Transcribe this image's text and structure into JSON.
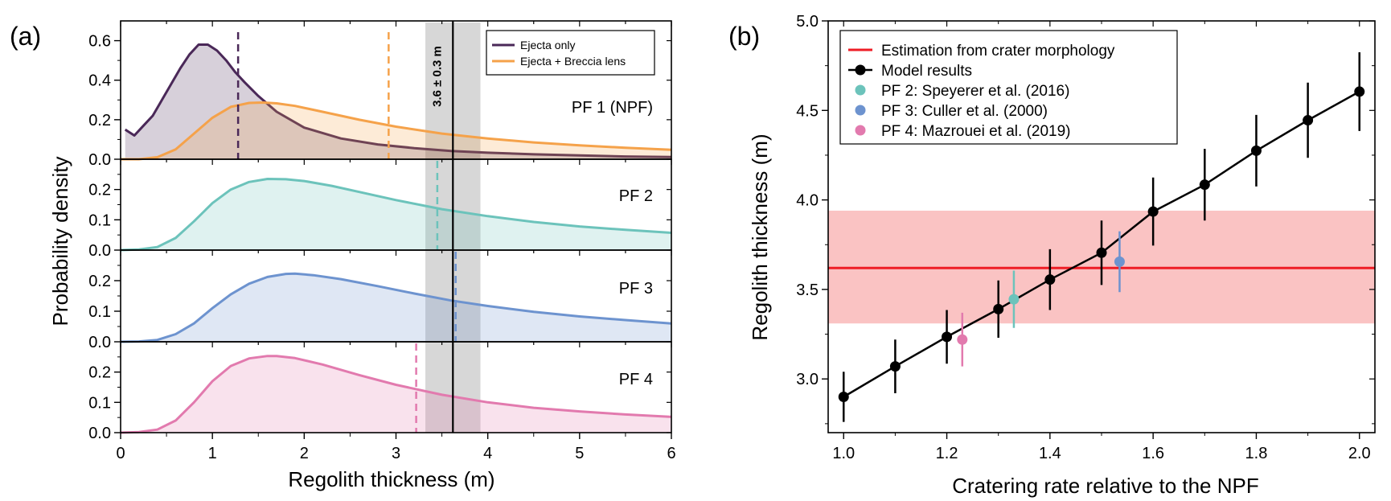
{
  "figure": {
    "panel_a_label": "(a)",
    "panel_b_label": "(b)"
  },
  "colors": {
    "ejecta": "#4a2858",
    "breccia": "#f5a24a",
    "pf2": "#6cc3bb",
    "pf3": "#6d93cf",
    "pf4": "#e27aae",
    "estimate": "#ee1c25",
    "estimate_band": "#f9b9b9",
    "model": "#000000",
    "grey_band": "#d3d3d3"
  },
  "chart_data": [
    {
      "type": "line",
      "panel": "(a)",
      "xlabel": "Regolith thickness (m)",
      "ylabel": "Probability density",
      "xlim": [
        0,
        6
      ],
      "xticks": [
        "0",
        "1",
        "2",
        "3",
        "4",
        "5",
        "6"
      ],
      "measured_thickness": {
        "label": "3.6 ± 0.3 m",
        "value": 3.62,
        "band": [
          3.32,
          3.92
        ]
      },
      "subplots": [
        {
          "name": "PF 1 (NPF)",
          "ylim": [
            0,
            0.7
          ],
          "yticks": [
            "0.0",
            "0.2",
            "0.4",
            "0.6"
          ],
          "legend": [
            "Ejecta only",
            "Ejecta + Breccia lens"
          ],
          "series": [
            {
              "name": "Ejecta only",
              "color_key": "ejecta",
              "x": [
                0.05,
                0.15,
                0.25,
                0.35,
                0.45,
                0.55,
                0.65,
                0.75,
                0.85,
                0.95,
                1.05,
                1.15,
                1.25,
                1.35,
                1.5,
                1.7,
                2.0,
                2.4,
                2.8,
                3.2,
                3.6,
                4.0,
                4.5,
                5.0,
                5.5,
                6.0
              ],
              "y": [
                0.15,
                0.12,
                0.17,
                0.22,
                0.3,
                0.38,
                0.46,
                0.53,
                0.58,
                0.58,
                0.55,
                0.5,
                0.44,
                0.39,
                0.32,
                0.24,
                0.16,
                0.105,
                0.075,
                0.056,
                0.042,
                0.033,
                0.025,
                0.019,
                0.014,
                0.011
              ],
              "median": 1.28
            },
            {
              "name": "Ejecta + Breccia lens",
              "color_key": "breccia",
              "x": [
                0.0,
                0.2,
                0.4,
                0.6,
                0.8,
                1.0,
                1.2,
                1.4,
                1.55,
                1.7,
                1.9,
                2.2,
                2.6,
                3.0,
                3.5,
                4.0,
                4.5,
                5.0,
                5.5,
                6.0
              ],
              "y": [
                0.0,
                0.0,
                0.01,
                0.05,
                0.13,
                0.21,
                0.265,
                0.285,
                0.287,
                0.283,
                0.27,
                0.24,
                0.2,
                0.165,
                0.13,
                0.105,
                0.085,
                0.07,
                0.058,
                0.048
              ],
              "median": 2.92
            }
          ]
        },
        {
          "name": "PF 2",
          "ylim": [
            0,
            0.3
          ],
          "yticks": [
            "0.0",
            "0.1",
            "0.2"
          ],
          "series": [
            {
              "name": "PF 2",
              "color_key": "pf2",
              "x": [
                0.0,
                0.2,
                0.4,
                0.6,
                0.8,
                1.0,
                1.2,
                1.4,
                1.6,
                1.8,
                2.0,
                2.3,
                2.6,
                3.0,
                3.5,
                4.0,
                4.5,
                5.0,
                5.5,
                6.0
              ],
              "y": [
                0.0,
                0.002,
                0.01,
                0.04,
                0.095,
                0.155,
                0.2,
                0.225,
                0.235,
                0.234,
                0.228,
                0.212,
                0.192,
                0.165,
                0.135,
                0.112,
                0.093,
                0.078,
                0.067,
                0.057
              ],
              "median": 3.45
            }
          ]
        },
        {
          "name": "PF 3",
          "ylim": [
            0,
            0.3
          ],
          "yticks": [
            "0.0",
            "0.1",
            "0.2"
          ],
          "series": [
            {
              "name": "PF 3",
              "color_key": "pf3",
              "x": [
                0.0,
                0.2,
                0.4,
                0.6,
                0.8,
                1.0,
                1.2,
                1.4,
                1.6,
                1.8,
                1.9,
                2.1,
                2.4,
                2.8,
                3.2,
                3.6,
                4.0,
                4.5,
                5.0,
                5.5,
                6.0
              ],
              "y": [
                0.0,
                0.001,
                0.006,
                0.025,
                0.06,
                0.11,
                0.155,
                0.19,
                0.212,
                0.222,
                0.223,
                0.218,
                0.205,
                0.182,
                0.158,
                0.135,
                0.117,
                0.098,
                0.083,
                0.071,
                0.06
              ],
              "median": 3.65
            }
          ]
        },
        {
          "name": "PF 4",
          "ylim": [
            0,
            0.3
          ],
          "yticks": [
            "0.0",
            "0.1",
            "0.2"
          ],
          "series": [
            {
              "name": "PF 4",
              "color_key": "pf4",
              "x": [
                0.0,
                0.2,
                0.4,
                0.6,
                0.8,
                1.0,
                1.2,
                1.4,
                1.6,
                1.7,
                1.9,
                2.2,
                2.6,
                3.0,
                3.5,
                4.0,
                4.5,
                5.0,
                5.5,
                6.0
              ],
              "y": [
                0.0,
                0.002,
                0.01,
                0.04,
                0.1,
                0.17,
                0.22,
                0.245,
                0.253,
                0.253,
                0.246,
                0.225,
                0.19,
                0.158,
                0.125,
                0.1,
                0.082,
                0.07,
                0.06,
                0.052
              ],
              "median": 3.22
            }
          ]
        }
      ]
    },
    {
      "type": "scatter",
      "panel": "(b)",
      "xlabel": "Cratering rate relative to the NPF",
      "ylabel": "Regolith thickness (m)",
      "xlim": [
        0.97,
        2.03
      ],
      "ylim": [
        2.7,
        5.0
      ],
      "xticks": [
        "1.0",
        "1.2",
        "1.4",
        "1.6",
        "1.8",
        "2.0"
      ],
      "yticks": [
        "3.0",
        "3.5",
        "4.0",
        "4.5",
        "5.0"
      ],
      "estimate": {
        "label": "Estimation from crater morphology",
        "value": 3.62,
        "band": [
          3.31,
          3.94
        ]
      },
      "model": {
        "label": "Model results",
        "x": [
          1.0,
          1.1,
          1.2,
          1.3,
          1.4,
          1.5,
          1.6,
          1.7,
          1.8,
          1.9,
          2.0
        ],
        "y": [
          2.9,
          3.07,
          3.235,
          3.39,
          3.555,
          3.705,
          3.935,
          4.085,
          4.275,
          4.445,
          4.605
        ],
        "err": [
          0.14,
          0.15,
          0.15,
          0.16,
          0.17,
          0.18,
          0.19,
          0.2,
          0.2,
          0.21,
          0.22
        ]
      },
      "points": [
        {
          "label": "PF 2: Speyerer et al. (2016)",
          "color_key": "pf2",
          "x": 1.33,
          "y": 3.445,
          "err": 0.16
        },
        {
          "label": "PF 3: Culler et al. (2000)",
          "color_key": "pf3",
          "x": 1.535,
          "y": 3.655,
          "err": 0.17
        },
        {
          "label": "PF 4: Mazrouei et al. (2019)",
          "color_key": "pf4",
          "x": 1.23,
          "y": 3.22,
          "err": 0.15
        }
      ]
    }
  ]
}
